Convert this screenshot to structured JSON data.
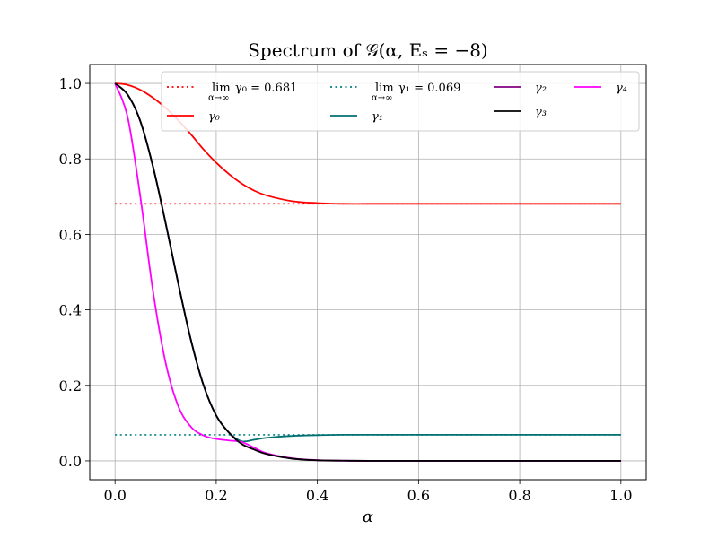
{
  "chart_data": {
    "type": "line",
    "title": "Spectrum of 𝒢(α, Eₛ = −8)",
    "xlabel": "α",
    "ylabel": "",
    "xlim": [
      -0.05,
      1.05
    ],
    "ylim": [
      -0.05,
      1.05
    ],
    "xticks": [
      0.0,
      0.2,
      0.4,
      0.6,
      0.8,
      1.0
    ],
    "yticks": [
      0.0,
      0.2,
      0.4,
      0.6,
      0.8,
      1.0
    ],
    "xtick_labels": [
      "0.0",
      "0.2",
      "0.4",
      "0.6",
      "0.8",
      "1.0"
    ],
    "ytick_labels": [
      "0.0",
      "0.2",
      "0.4",
      "0.6",
      "0.8",
      "1.0"
    ],
    "grid": true,
    "legend_position": "top",
    "legend_ncol": 4,
    "x": [
      0.0,
      0.025,
      0.05,
      0.075,
      0.1,
      0.125,
      0.15,
      0.175,
      0.2,
      0.225,
      0.25,
      0.275,
      0.3,
      0.35,
      0.4,
      0.45,
      0.5,
      0.6,
      0.7,
      0.8,
      0.9,
      1.0
    ],
    "series": [
      {
        "name": "lim_{α→∞} γ₀ = 0.681",
        "legend_main": "lim",
        "legend_sub": "α→∞",
        "legend_rest": "γ₀ = 0.681",
        "color": "#ff0000",
        "style": "dotted",
        "constant": 0.681
      },
      {
        "name": "γ₀",
        "legend_label": "γ₀",
        "color": "#ff0000",
        "style": "solid",
        "values": [
          1.0,
          0.996,
          0.983,
          0.962,
          0.935,
          0.902,
          0.865,
          0.825,
          0.79,
          0.76,
          0.735,
          0.716,
          0.703,
          0.688,
          0.683,
          0.681,
          0.681,
          0.681,
          0.681,
          0.681,
          0.681,
          0.681
        ]
      },
      {
        "name": "lim_{α→∞} γ₁ = 0.069",
        "legend_main": "lim",
        "legend_sub": "α→∞",
        "legend_rest": "γ₁ = 0.069",
        "color": "#008080",
        "style": "dotted",
        "constant": 0.069
      },
      {
        "name": "γ₁",
        "legend_label": "γ₁",
        "color": "#007070",
        "style": "solid",
        "values": [
          1.0,
          0.97,
          0.9,
          0.78,
          0.63,
          0.47,
          0.32,
          0.2,
          0.12,
          0.075,
          0.052,
          0.056,
          0.061,
          0.066,
          0.068,
          0.069,
          0.069,
          0.069,
          0.069,
          0.069,
          0.069,
          0.069
        ]
      },
      {
        "name": "γ₂",
        "legend_label": "γ₂",
        "color": "#800080",
        "style": "solid",
        "values": [
          1.0,
          0.97,
          0.9,
          0.78,
          0.63,
          0.47,
          0.32,
          0.2,
          0.12,
          0.075,
          0.045,
          0.03,
          0.018,
          0.006,
          0.0015,
          0.0005,
          0.0,
          0.0,
          0.0,
          0.0,
          0.0,
          0.0
        ]
      },
      {
        "name": "γ₃",
        "legend_label": "γ₃",
        "color": "#000000",
        "style": "solid",
        "values": [
          1.0,
          0.97,
          0.9,
          0.78,
          0.63,
          0.47,
          0.32,
          0.2,
          0.12,
          0.075,
          0.045,
          0.03,
          0.018,
          0.006,
          0.0015,
          0.0005,
          0.0,
          0.0,
          0.0,
          0.0,
          0.0,
          0.0
        ]
      },
      {
        "name": "γ₄",
        "legend_label": "γ₄",
        "color": "#ff00ff",
        "style": "solid",
        "values": [
          1.0,
          0.91,
          0.7,
          0.45,
          0.26,
          0.145,
          0.09,
          0.067,
          0.058,
          0.054,
          0.05,
          0.035,
          0.02,
          0.007,
          0.002,
          0.0005,
          0.0,
          0.0,
          0.0,
          0.0,
          0.0,
          0.0
        ]
      }
    ]
  }
}
